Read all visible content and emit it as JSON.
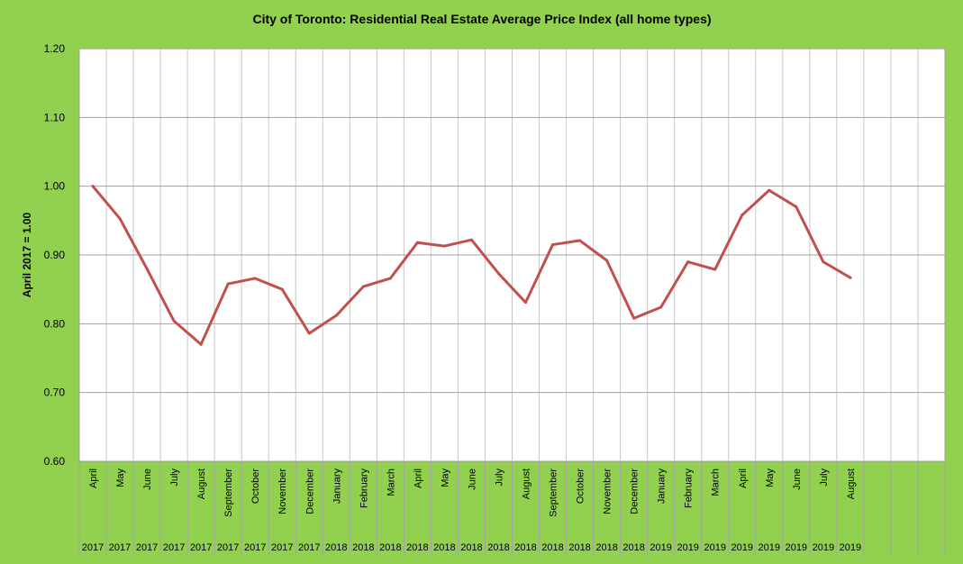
{
  "chart_data": {
    "type": "line",
    "title": "City of Toronto: Residential Real Estate Average Price Index  (all home types)",
    "ylabel": "April 2017 = 1.00",
    "xlabel": "",
    "ylim": [
      0.6,
      1.2
    ],
    "yticks": [
      "0.60",
      "0.70",
      "0.80",
      "0.90",
      "1.00",
      "1.10",
      "1.20"
    ],
    "grid": true,
    "legend": "none",
    "line_color": "#c0504d",
    "plot_background": "#ffffff",
    "page_background": "#92d050",
    "slots": 32,
    "categories": [
      {
        "month": "April",
        "year": "2017"
      },
      {
        "month": "May",
        "year": "2017"
      },
      {
        "month": "June",
        "year": "2017"
      },
      {
        "month": "July",
        "year": "2017"
      },
      {
        "month": "August",
        "year": "2017"
      },
      {
        "month": "September",
        "year": "2017"
      },
      {
        "month": "October",
        "year": "2017"
      },
      {
        "month": "November",
        "year": "2017"
      },
      {
        "month": "December",
        "year": "2017"
      },
      {
        "month": "January",
        "year": "2018"
      },
      {
        "month": "February",
        "year": "2018"
      },
      {
        "month": "March",
        "year": "2018"
      },
      {
        "month": "April",
        "year": "2018"
      },
      {
        "month": "May",
        "year": "2018"
      },
      {
        "month": "June",
        "year": "2018"
      },
      {
        "month": "July",
        "year": "2018"
      },
      {
        "month": "August",
        "year": "2018"
      },
      {
        "month": "September",
        "year": "2018"
      },
      {
        "month": "October",
        "year": "2018"
      },
      {
        "month": "November",
        "year": "2018"
      },
      {
        "month": "December",
        "year": "2018"
      },
      {
        "month": "January",
        "year": "2019"
      },
      {
        "month": "February",
        "year": "2019"
      },
      {
        "month": "March",
        "year": "2019"
      },
      {
        "month": "April",
        "year": "2019"
      },
      {
        "month": "May",
        "year": "2019"
      },
      {
        "month": "June",
        "year": "2019"
      },
      {
        "month": "July",
        "year": "2019"
      },
      {
        "month": "August",
        "year": "2019"
      }
    ],
    "series": [
      {
        "values": [
          1.0,
          0.953,
          0.88,
          0.804,
          0.77,
          0.858,
          0.866,
          0.85,
          0.786,
          0.812,
          0.854,
          0.866,
          0.918,
          0.913,
          0.922,
          0.873,
          0.831,
          0.915,
          0.921,
          0.892,
          0.808,
          0.824,
          0.89,
          0.879,
          0.958,
          0.994,
          0.97,
          0.89,
          0.867
        ]
      }
    ]
  }
}
